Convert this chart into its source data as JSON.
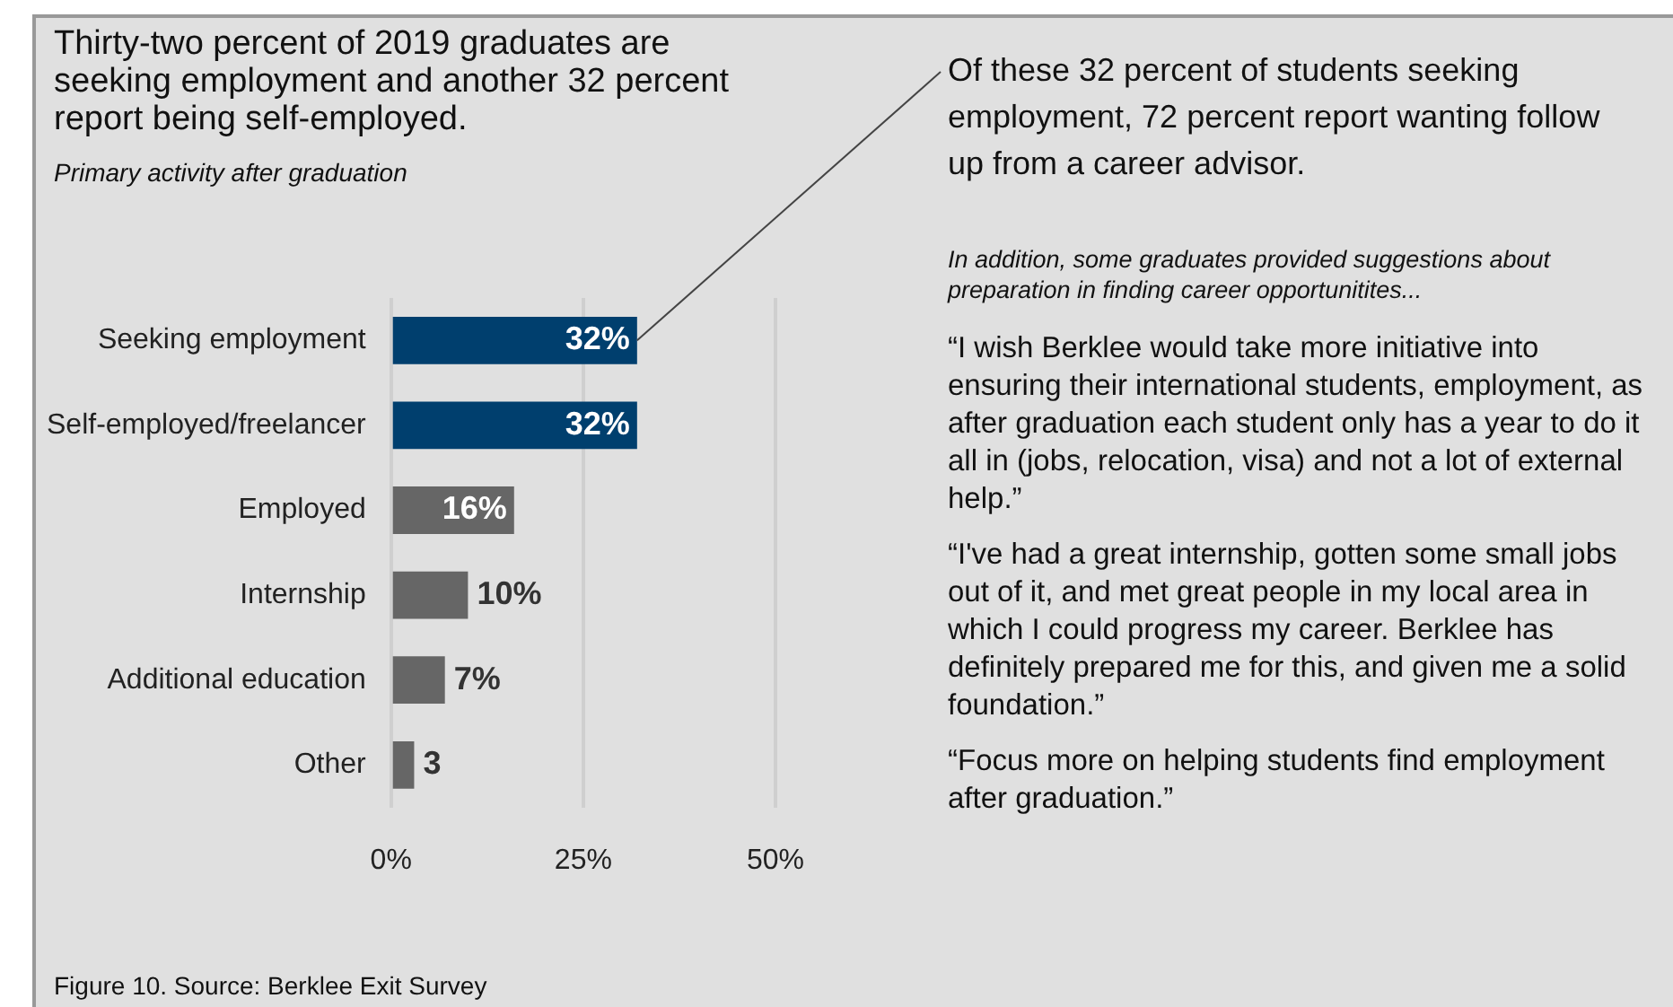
{
  "chart_data": {
    "type": "bar",
    "orientation": "horizontal",
    "title": "Thirty-two percent of 2019 graduates are seeking employment and another 32 percent report being self-employed.",
    "subtitle": "Primary activity after graduation",
    "categories": [
      "Seeking employment",
      "Self-employed/freelancer",
      "Employed",
      "Internship",
      "Additional education",
      "Other"
    ],
    "values": [
      32,
      32,
      16,
      10,
      7,
      3
    ],
    "colors": [
      "#003f6e",
      "#003f6e",
      "#666666",
      "#666666",
      "#666666",
      "#666666"
    ],
    "value_labels": [
      "32%",
      "32%",
      "16%",
      "10%",
      "7%",
      "3"
    ],
    "xlim": [
      0,
      50
    ],
    "xticks": [
      {
        "value": 0,
        "label": "0%"
      },
      {
        "value": 25,
        "label": "25%"
      },
      {
        "value": 50,
        "label": "50%"
      }
    ],
    "grid": "x",
    "legend": false,
    "annotations": [
      {
        "text": "Of these 32 percent of students seeking employment, 72 percent report wanting follow up from a career advisor.",
        "x": 32,
        "y": "Seeking employment"
      },
      "In addition, some graduates provided suggestions about preparation in finding career opportunitites...",
      "“I wish Berklee would take more initiative into ensuring their international students, employment, as after graduation each student only has a year to do it all in (jobs, relocation, visa) and not a lot of external help.”",
      "“I've had a great internship, gotten some small jobs out of it, and met great people in my local area in which I could progress my career. Berklee has definitely prepared me for this, and given me a solid foundation.”",
      "“Focus more on helping students find employment after graduation.”",
      "Figure 10. Source: Berklee Exit Survey"
    ]
  }
}
